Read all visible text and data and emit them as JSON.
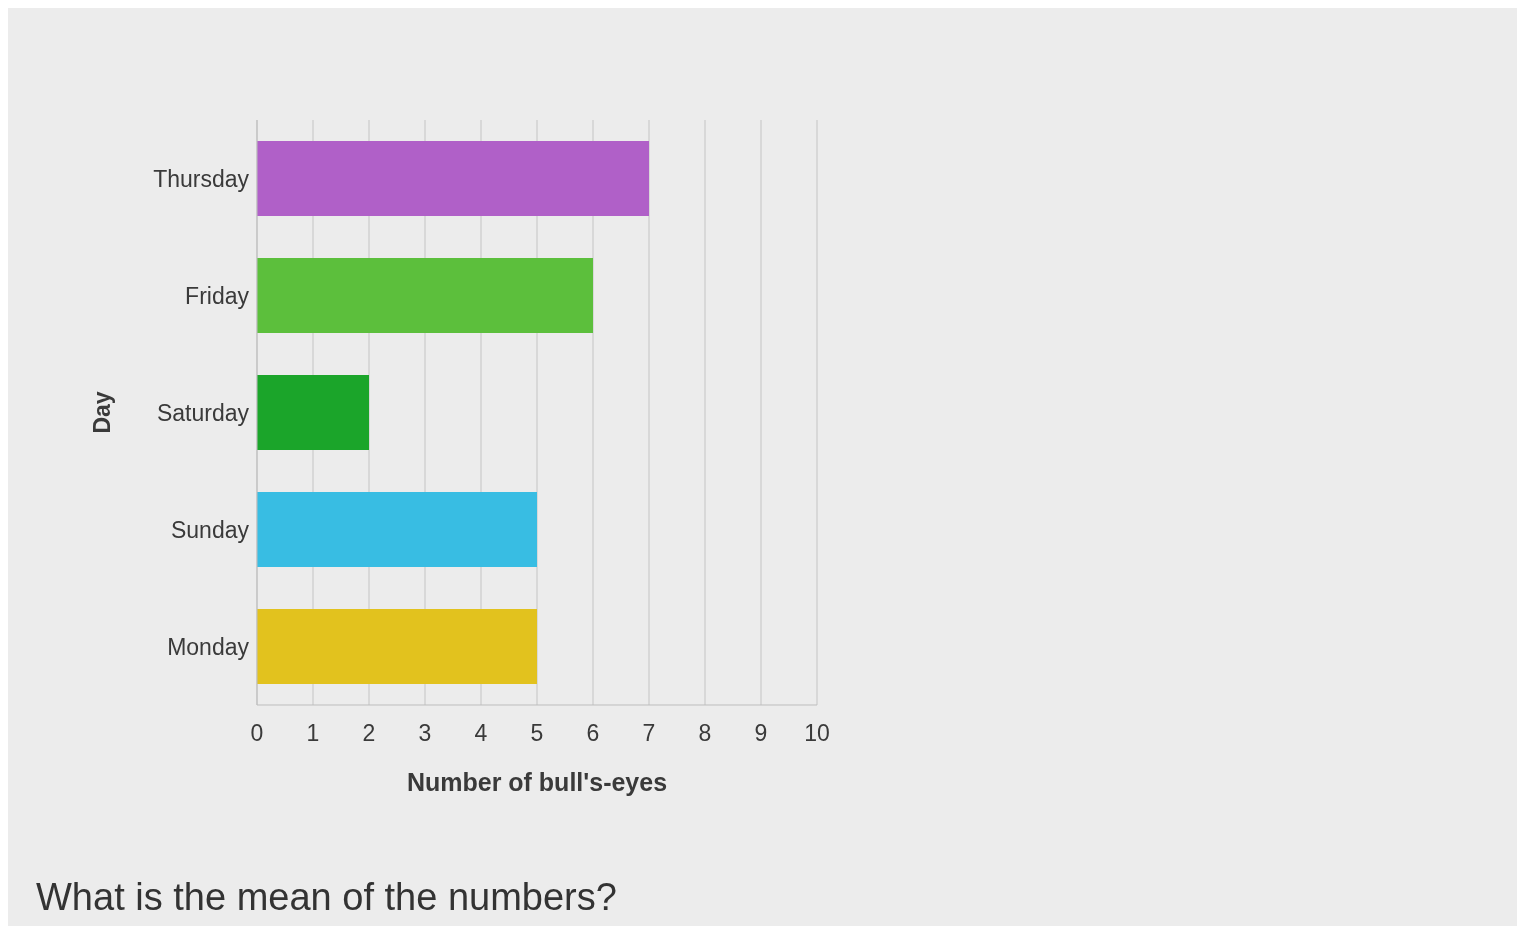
{
  "chart_data": {
    "type": "bar",
    "orientation": "horizontal",
    "categories": [
      "Thursday",
      "Friday",
      "Saturday",
      "Sunday",
      "Monday"
    ],
    "values": [
      7,
      6,
      2,
      5,
      5
    ],
    "colors": [
      "#b060c8",
      "#5cbf3c",
      "#1ba52a",
      "#38bde3",
      "#e2c21e"
    ],
    "xlim": [
      0,
      10
    ],
    "xticks": [
      0,
      1,
      2,
      3,
      4,
      5,
      6,
      7,
      8,
      9,
      10
    ],
    "grid": "x",
    "xlabel": "Number of bull's-eyes",
    "ylabel": "Day",
    "annotations": [
      "What is the mean of the numbers?"
    ]
  }
}
